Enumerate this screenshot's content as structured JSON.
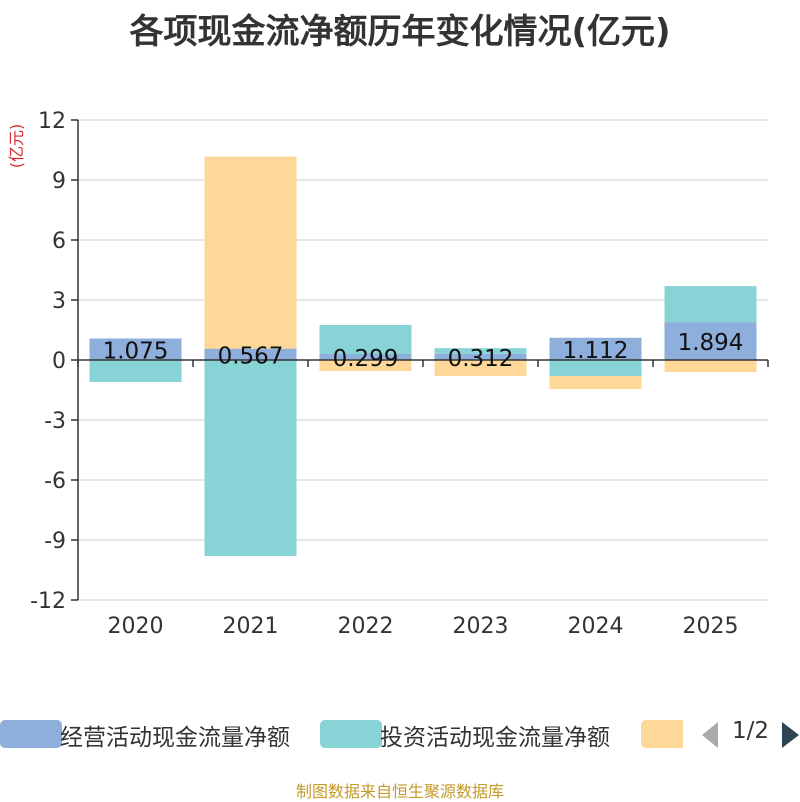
{
  "title": "各项现金流净额历年变化情况(亿元)",
  "source": "制图数据来自恒生聚源数据库",
  "colors": {
    "operating": "#8eaedb",
    "investing": "#87d3d6",
    "financing": "#fdd898",
    "axis": "#333333",
    "grid": "#cccccc",
    "unit": "#d9262d"
  },
  "pager": {
    "text": "1/2",
    "prev_icon": "triangle-left-icon",
    "next_icon": "triangle-right-icon"
  },
  "chart_data": {
    "type": "bar",
    "stacked": true,
    "title": "各项现金流净额历年变化情况(亿元)",
    "ylabel": "(亿元)",
    "ylim": [
      -12,
      12
    ],
    "yticks": [
      12,
      9,
      6,
      3,
      0,
      -3,
      -6,
      -9,
      -12
    ],
    "grid": true,
    "legend_position": "bottom",
    "categories": [
      "2020",
      "2021",
      "2022",
      "2023",
      "2024",
      "2025"
    ],
    "series": [
      {
        "name": "经营活动现金流量净额",
        "color_key": "operating",
        "values": [
          1.075,
          0.567,
          0.299,
          0.312,
          1.112,
          1.894
        ],
        "labels": [
          "1.075",
          "0.567",
          "0.299",
          "0.312",
          "1.112",
          "1.894"
        ]
      },
      {
        "name": "投资活动现金流量净额",
        "color_key": "investing",
        "values": [
          -1.1,
          -9.8,
          1.45,
          0.28,
          -0.8,
          1.8
        ]
      },
      {
        "name": "",
        "color_key": "financing",
        "values": [
          0.0,
          9.6,
          -0.55,
          -0.8,
          -0.65,
          -0.6
        ]
      }
    ]
  }
}
